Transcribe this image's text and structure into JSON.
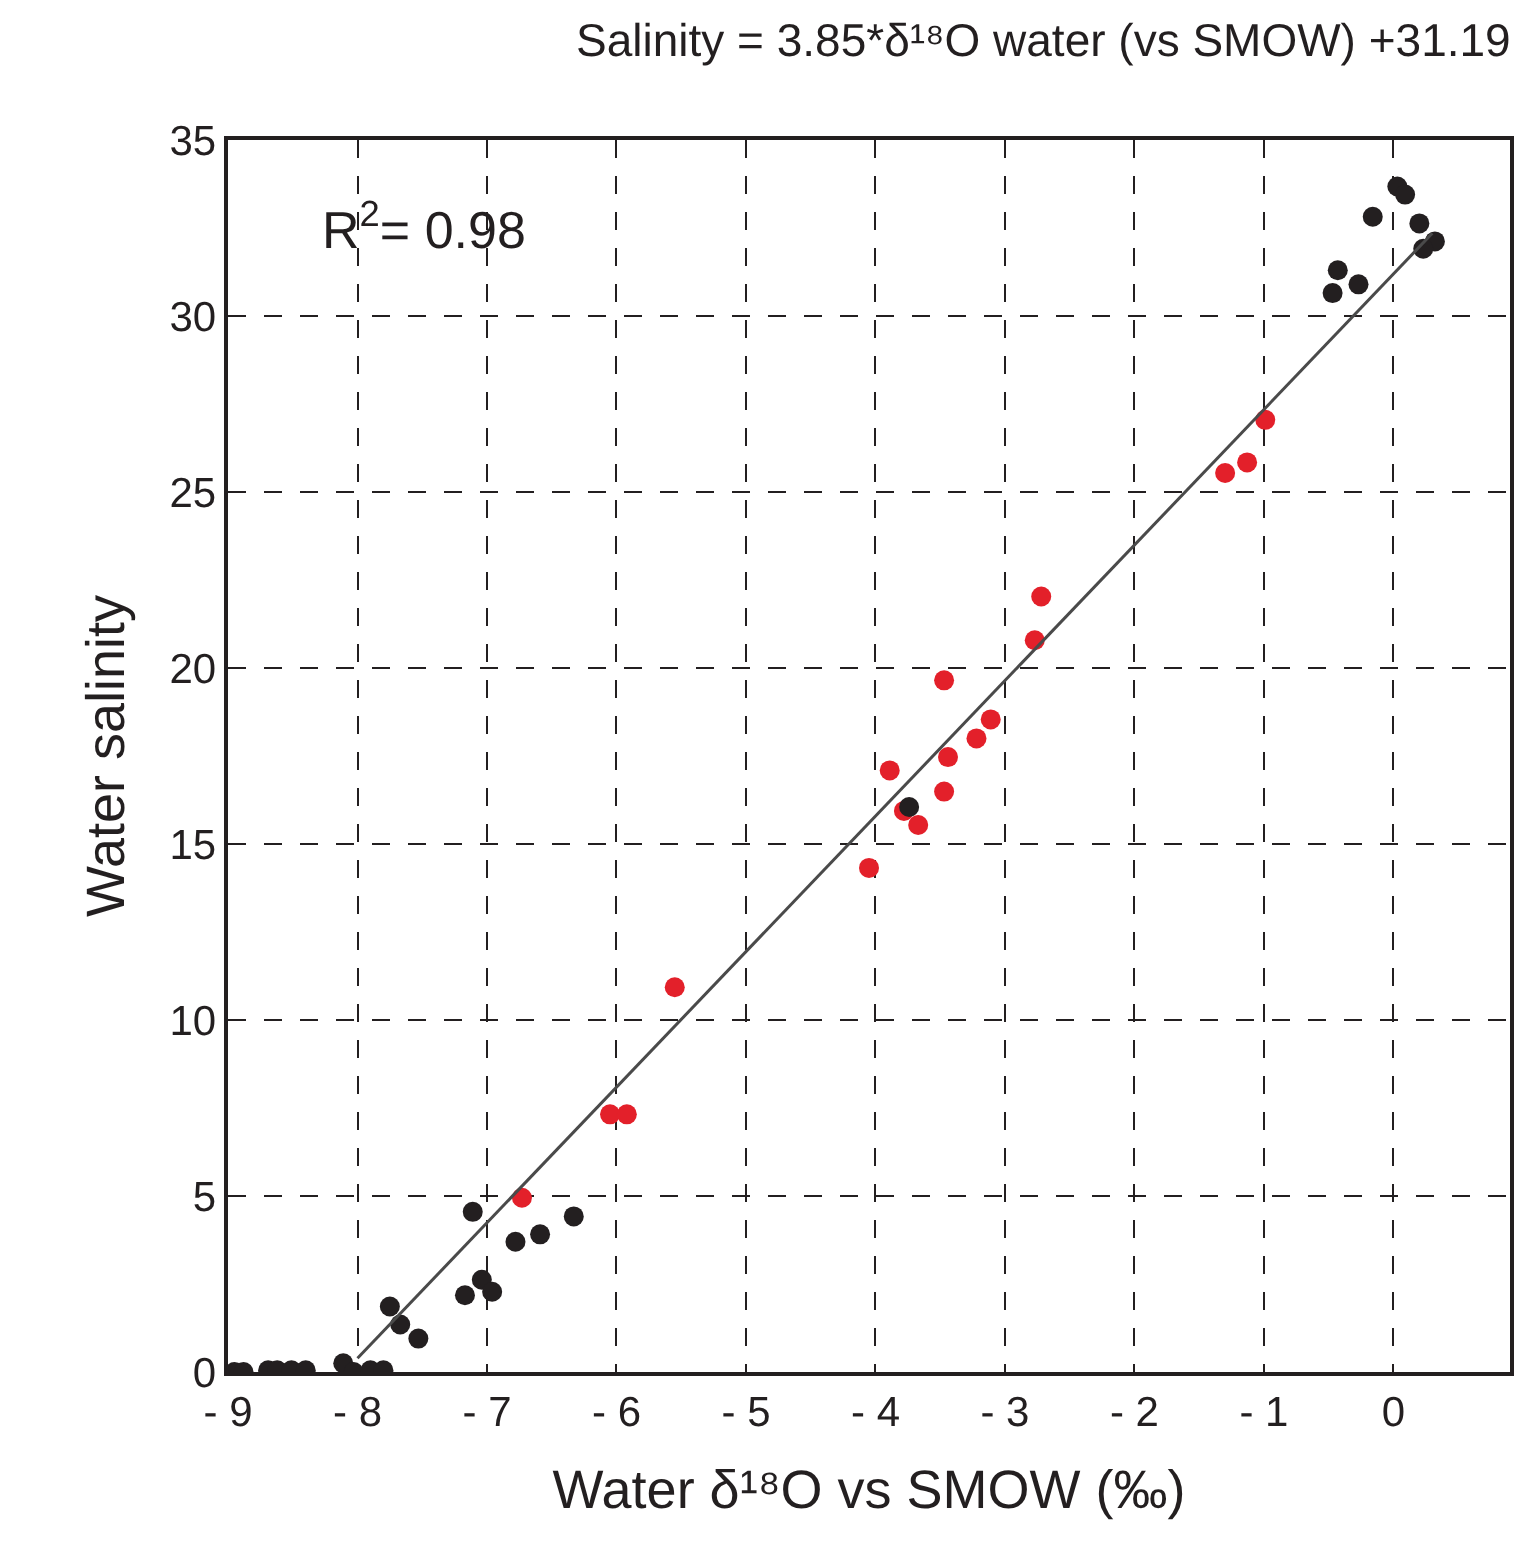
{
  "chart_data": {
    "type": "scatter",
    "title": "Salinity = 3.85*δ¹⁸O water (vs SMOW) +31.19",
    "xlabel": "Water δ¹⁸O vs SMOW (‰)",
    "ylabel": "Water salinity",
    "annotations": [
      "R$^{2}$= 0.98"
    ],
    "xlim": [
      -9,
      0.9
    ],
    "xticks": [
      -9,
      -8,
      -7,
      -6,
      -5,
      -4,
      -3,
      -2,
      -1,
      0
    ],
    "ylim": [
      0,
      35
    ],
    "yticks": [
      0,
      5,
      10,
      15,
      20,
      25,
      30,
      35
    ],
    "grid": true,
    "marker": "circle",
    "series": [
      {
        "color": "#231f20",
        "x": [
          -8.95,
          -8.88,
          -8.69,
          -8.62,
          -8.51,
          -8.4,
          -8.11,
          -8.03,
          -7.9,
          -7.8,
          -7.75,
          -7.67,
          -7.53,
          -7.17,
          -7.04,
          -6.96,
          -7.11,
          -6.78,
          -6.59,
          -6.33,
          -3.74,
          0.03,
          0.09,
          -0.16,
          0.2,
          -0.43,
          -0.27,
          -0.47,
          0.32,
          0.23
        ],
        "values": [
          0,
          0,
          0.05,
          0.05,
          0.05,
          0.05,
          0.25,
          0,
          0.05,
          0.05,
          1.86,
          1.35,
          0.95,
          2.18,
          2.62,
          2.28,
          4.55,
          3.7,
          3.91,
          4.42,
          16.05,
          33.68,
          33.45,
          32.82,
          32.63,
          31.3,
          30.9,
          30.65,
          32.12,
          31.91
        ]
      },
      {
        "color": "#e3202a",
        "x": [
          -6.73,
          -6.05,
          -5.92,
          -5.55,
          -2.72,
          -2.77,
          -3.47,
          -3.11,
          -3.22,
          -3.44,
          -3.89,
          -3.47,
          -3.78,
          -3.67,
          -4.05,
          -0.99,
          -1.13,
          -1.3
        ],
        "values": [
          4.95,
          7.32,
          7.32,
          10.93,
          22.03,
          20.79,
          19.65,
          18.54,
          18.0,
          17.47,
          17.09,
          16.49,
          15.94,
          15.54,
          14.32,
          27.05,
          25.84,
          25.54
        ]
      },
      {
        "type": "line",
        "color": "#4a4a4a",
        "marker": "none",
        "line_style": "solid",
        "x": [
          -8,
          0.3
        ],
        "values": [
          0.39,
          32.35
        ]
      }
    ]
  }
}
